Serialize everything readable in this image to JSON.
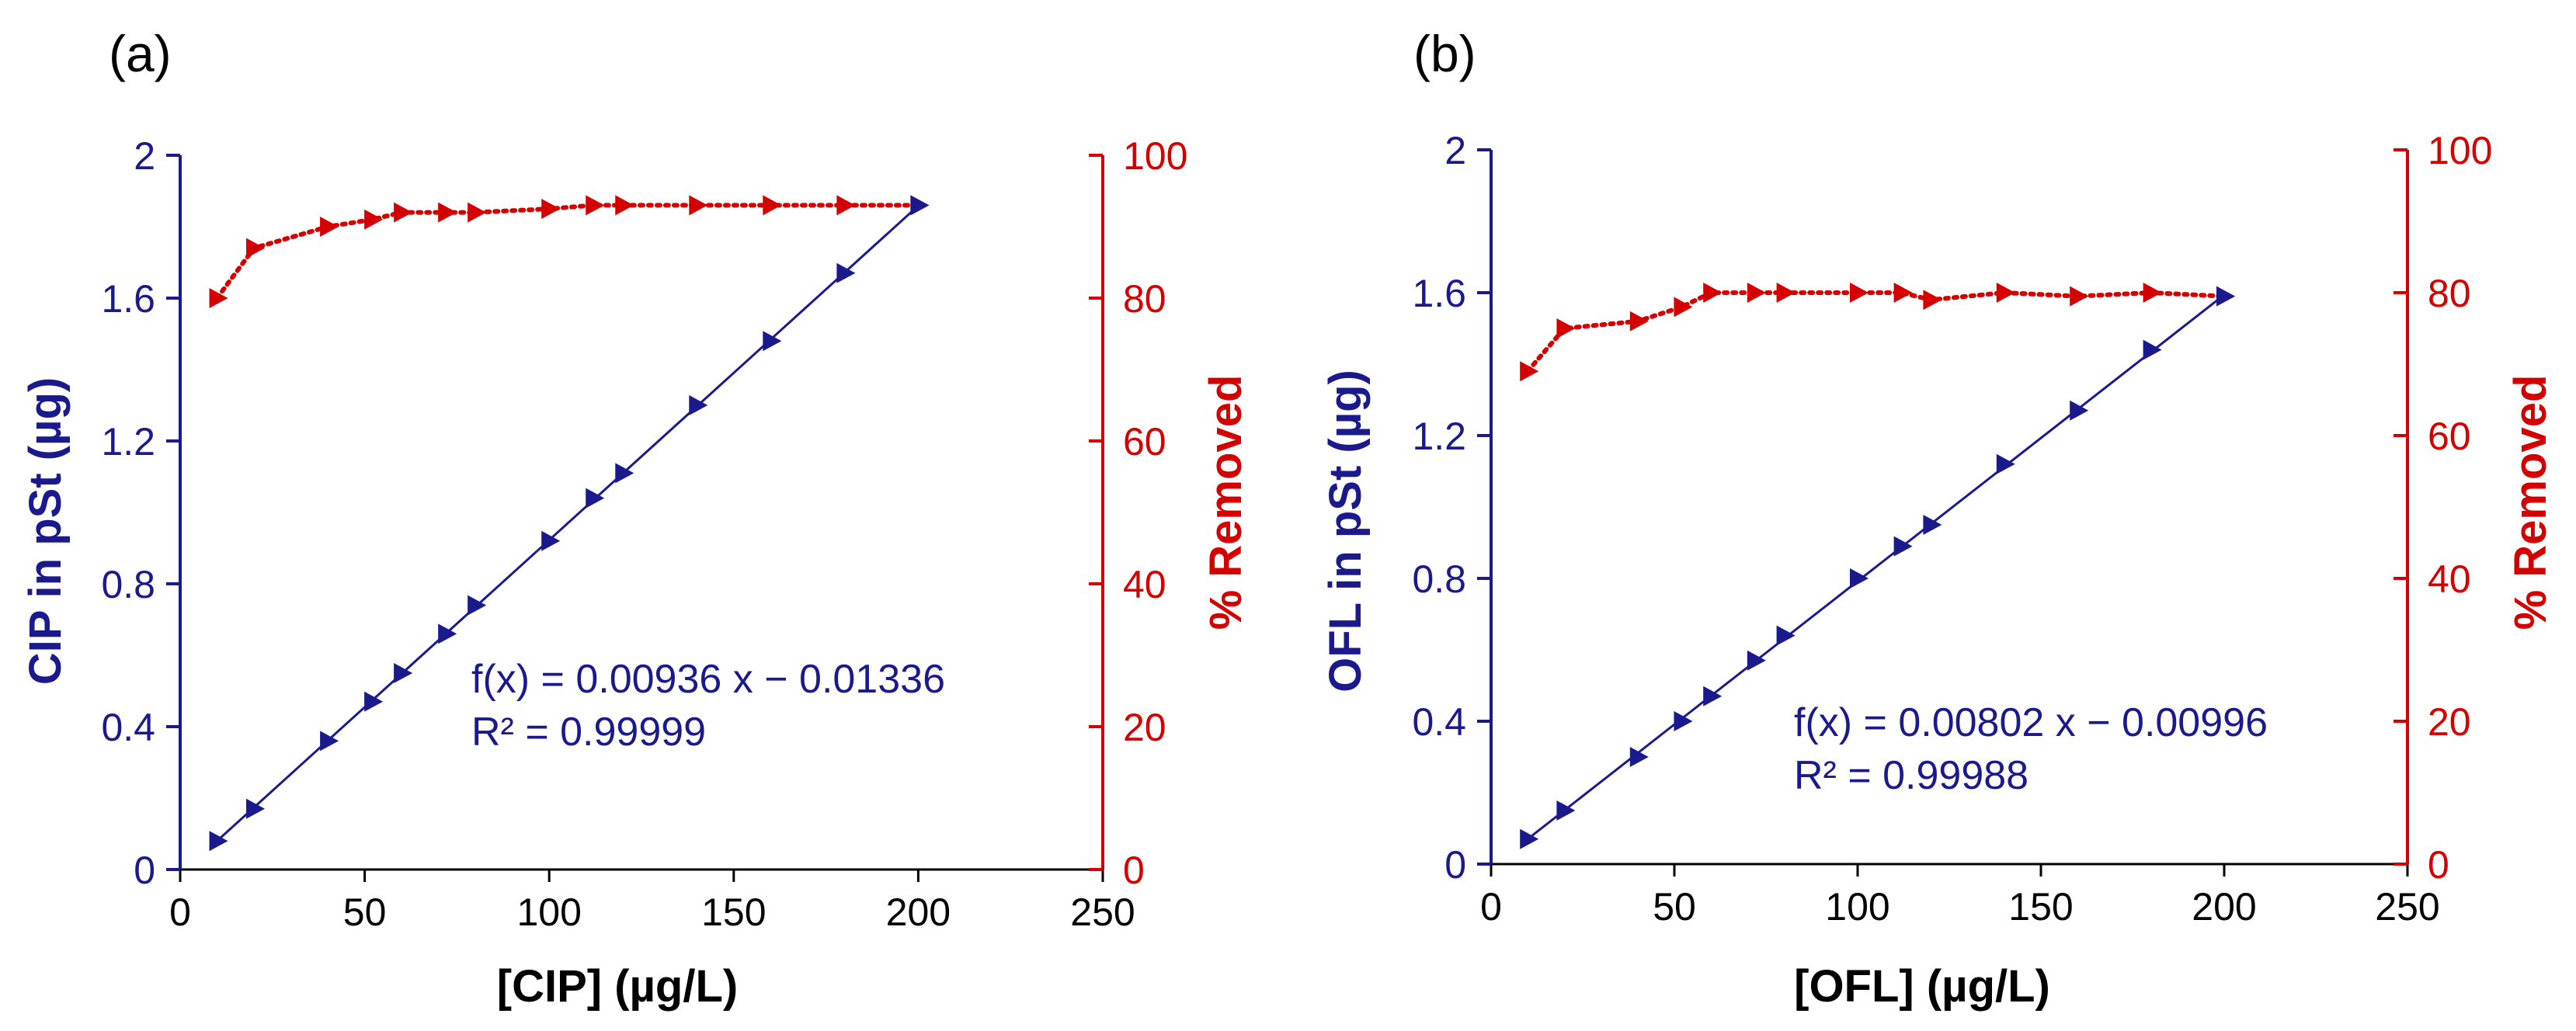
{
  "colors": {
    "blue": "#1a1a8c",
    "red": "#d40000"
  },
  "chart_data": [
    {
      "type": "line",
      "panel_label": "(a)",
      "xlabel": "[CIP] (µg/L)",
      "ylabel_left": "CIP in pSt (µg)",
      "ylabel_right": "% Removed",
      "xlim": [
        0,
        250
      ],
      "ylim_left": [
        0,
        2
      ],
      "ylim_right": [
        0,
        100
      ],
      "xticks": [
        "0",
        "50",
        "100",
        "150",
        "200",
        "250"
      ],
      "yticks_left": [
        "0",
        "0.4",
        "0.8",
        "1.2",
        "1.6",
        "2"
      ],
      "yticks_right": [
        "0",
        "20",
        "40",
        "60",
        "80",
        "100"
      ],
      "x": [
        10,
        20,
        40,
        52,
        60,
        72,
        80,
        100,
        112,
        120,
        140,
        160,
        180,
        200
      ],
      "series": [
        {
          "name": "CIP in pSt",
          "axis": "left",
          "style": "solid",
          "values": [
            0.08,
            0.17,
            0.36,
            0.47,
            0.55,
            0.66,
            0.74,
            0.92,
            1.04,
            1.11,
            1.3,
            1.48,
            1.67,
            1.86
          ]
        },
        {
          "name": "% Removed",
          "axis": "right",
          "style": "dotted",
          "values": [
            80,
            87,
            90,
            91,
            92,
            92,
            92,
            92.5,
            93,
            93,
            93,
            93,
            93,
            93
          ]
        }
      ],
      "fit": {
        "slope": 0.00936,
        "intercept": -0.01336,
        "x_range": [
          10,
          200
        ]
      },
      "annotation": [
        "f(x) = 0.00936 x − 0.01336",
        "R² = 0.99999"
      ]
    },
    {
      "type": "line",
      "panel_label": "(b)",
      "xlabel": "[OFL] (µg/L)",
      "ylabel_left": "OFL in pSt (µg)",
      "ylabel_right": "% Removed",
      "xlim": [
        0,
        250
      ],
      "ylim_left": [
        0,
        2
      ],
      "ylim_right": [
        0,
        100
      ],
      "xticks": [
        "0",
        "50",
        "100",
        "150",
        "200",
        "250"
      ],
      "yticks_left": [
        "0",
        "0.4",
        "0.8",
        "1.2",
        "1.6",
        "2"
      ],
      "yticks_right": [
        "0",
        "20",
        "40",
        "60",
        "80",
        "100"
      ],
      "x": [
        10,
        20,
        40,
        52,
        60,
        72,
        80,
        100,
        112,
        120,
        140,
        160,
        180,
        200
      ],
      "series": [
        {
          "name": "OFL in pSt",
          "axis": "left",
          "style": "solid",
          "values": [
            0.07,
            0.15,
            0.3,
            0.4,
            0.47,
            0.57,
            0.64,
            0.8,
            0.89,
            0.95,
            1.12,
            1.27,
            1.44,
            1.59
          ]
        },
        {
          "name": "% Removed",
          "axis": "right",
          "style": "dotted",
          "values": [
            69,
            75,
            76,
            78,
            80,
            80,
            80,
            80,
            80,
            79,
            80,
            79.5,
            80,
            79.5
          ]
        }
      ],
      "fit": {
        "slope": 0.00802,
        "intercept": -0.00996,
        "x_range": [
          10,
          200
        ]
      },
      "annotation": [
        "f(x) = 0.00802 x − 0.00996",
        "R² = 0.99988"
      ]
    }
  ]
}
